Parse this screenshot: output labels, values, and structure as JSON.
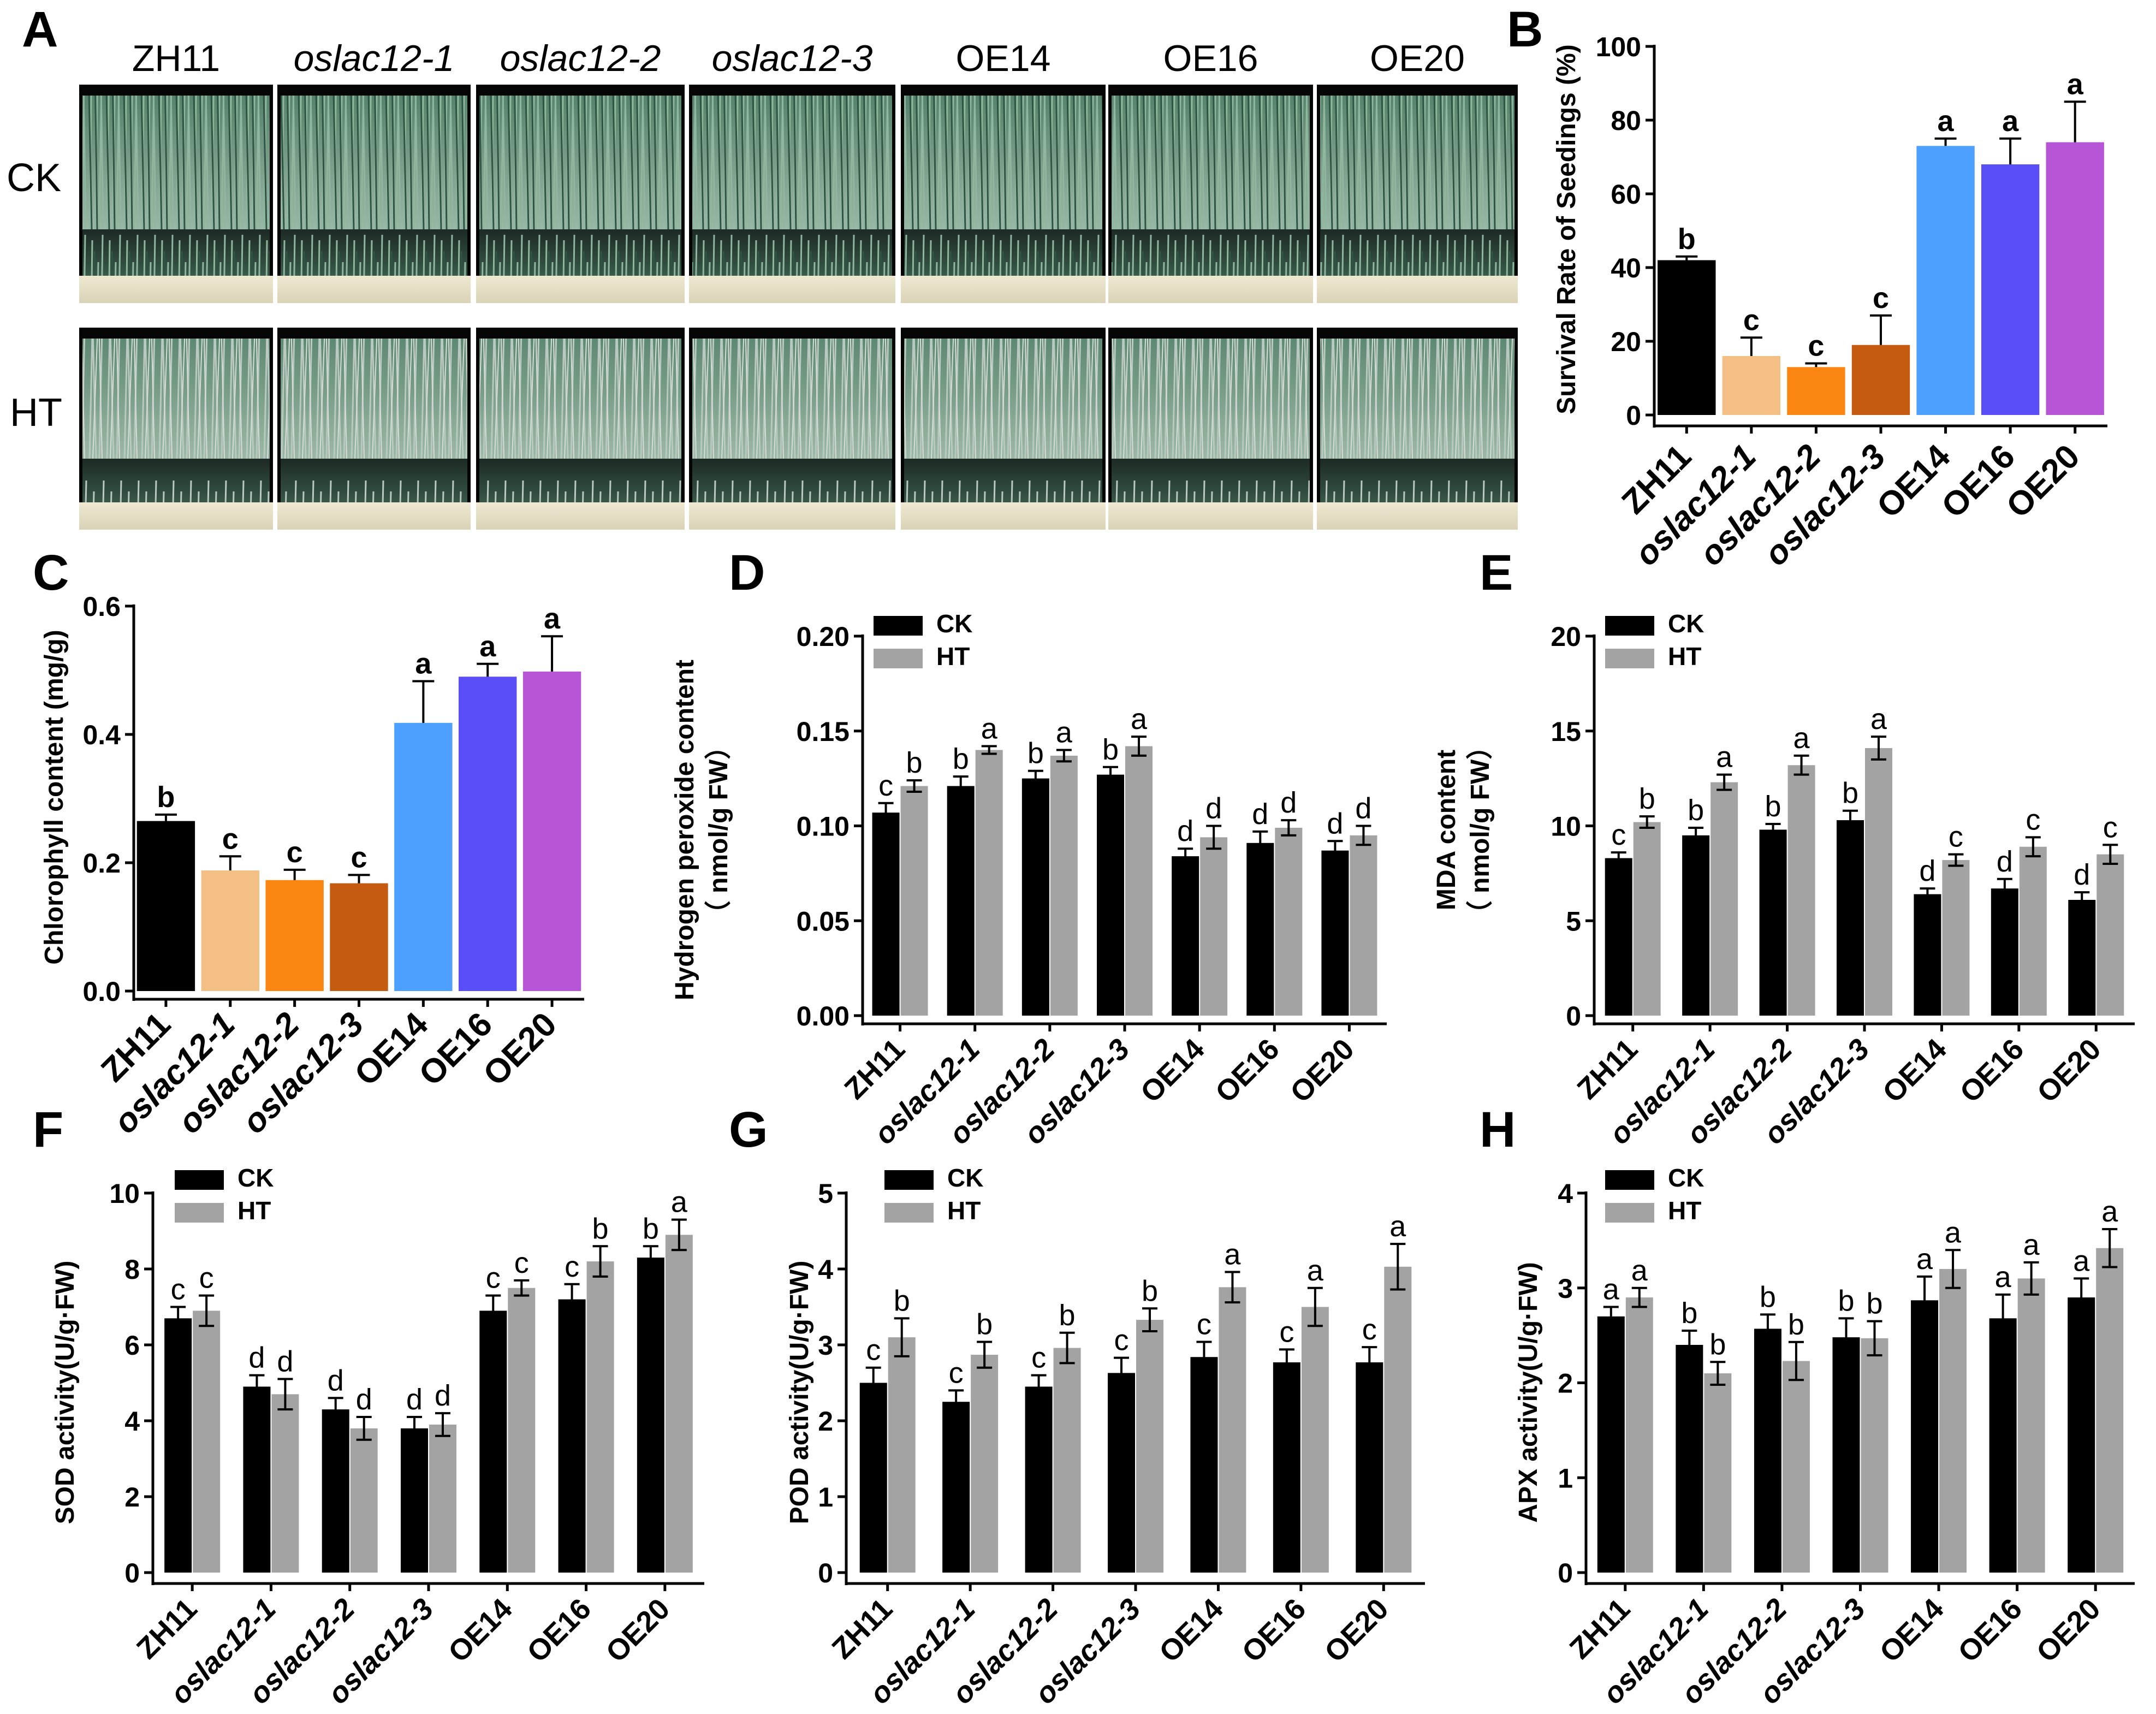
{
  "panel_a": {
    "label": "A",
    "genotypes": [
      "ZH11",
      "oslac12-1",
      "oslac12-2",
      "oslac12-3",
      "OE14",
      "OE16",
      "OE20"
    ],
    "italic": [
      false,
      true,
      true,
      true,
      false,
      false,
      false
    ],
    "conditions": [
      "CK",
      "HT"
    ]
  },
  "colors": {
    "ck": "#000000",
    "ht": "#a3a3a3",
    "survival": [
      "#000000",
      "#f3bf85",
      "#fb8712",
      "#c55a11",
      "#4ea0ff",
      "#5a4ff7",
      "#b655d6"
    ]
  },
  "legend": {
    "ck": "CK",
    "ht": "HT"
  },
  "chart_data": [
    {
      "id": "B",
      "type": "bar",
      "label": "B",
      "categories": [
        "ZH11",
        "oslac12-1",
        "oslac12-2",
        "oslac12-3",
        "OE14",
        "OE16",
        "OE20"
      ],
      "values": [
        42,
        16,
        13,
        19,
        73,
        68,
        74
      ],
      "errors": [
        1,
        5,
        1,
        8,
        2,
        7,
        11
      ],
      "sig": [
        "b",
        "c",
        "c",
        "c",
        "a",
        "a",
        "a"
      ],
      "ylabel": "Survival Rate of Seedings (%)",
      "ylim": [
        0,
        100
      ],
      "yticks": [
        0,
        20,
        40,
        60,
        80,
        100
      ]
    },
    {
      "id": "C",
      "type": "bar",
      "label": "C",
      "categories": [
        "ZH11",
        "oslac12-1",
        "oslac12-2",
        "oslac12-3",
        "OE14",
        "OE16",
        "OE20"
      ],
      "values": [
        0.265,
        0.188,
        0.173,
        0.168,
        0.418,
        0.49,
        0.498
      ],
      "errors": [
        0.01,
        0.022,
        0.016,
        0.013,
        0.065,
        0.02,
        0.055
      ],
      "sig": [
        "b",
        "c",
        "c",
        "c",
        "a",
        "a",
        "a"
      ],
      "ylabel": "Chlorophyll content (mg/g)",
      "ylim": [
        0,
        0.6
      ],
      "yticks": [
        "0.0",
        "0.2",
        "0.4",
        "0.6"
      ]
    },
    {
      "id": "D",
      "type": "bar",
      "label": "D",
      "categories": [
        "ZH11",
        "oslac12-1",
        "oslac12-2",
        "oslac12-3",
        "OE14",
        "OE16",
        "OE20"
      ],
      "series": [
        {
          "name": "CK",
          "values": [
            0.107,
            0.121,
            0.125,
            0.127,
            0.084,
            0.091,
            0.087
          ],
          "errors": [
            0.005,
            0.005,
            0.004,
            0.004,
            0.004,
            0.006,
            0.005
          ],
          "sig": [
            "c",
            "b",
            "b",
            "b",
            "d",
            "d",
            "d"
          ]
        },
        {
          "name": "HT",
          "values": [
            0.121,
            0.14,
            0.137,
            0.142,
            0.094,
            0.099,
            0.095
          ],
          "errors": [
            0.003,
            0.002,
            0.003,
            0.005,
            0.006,
            0.004,
            0.005
          ],
          "sig": [
            "b",
            "a",
            "a",
            "a",
            "d",
            "d",
            "d"
          ]
        }
      ],
      "ylabel": "Hydrogen peroxide content",
      "ylabel2": "（ nmol/g FW）",
      "ylim": [
        0,
        0.2
      ],
      "yticks": [
        "0.00",
        "0.05",
        "0.10",
        "0.15",
        "0.20"
      ]
    },
    {
      "id": "E",
      "type": "bar",
      "label": "E",
      "categories": [
        "ZH11",
        "oslac12-1",
        "oslac12-2",
        "oslac12-3",
        "OE14",
        "OE16",
        "OE20"
      ],
      "series": [
        {
          "name": "CK",
          "values": [
            8.3,
            9.5,
            9.8,
            10.3,
            6.4,
            6.7,
            6.1
          ],
          "errors": [
            0.3,
            0.4,
            0.3,
            0.5,
            0.3,
            0.5,
            0.4
          ],
          "sig": [
            "c",
            "b",
            "b",
            "b",
            "d",
            "d",
            "d"
          ]
        },
        {
          "name": "HT",
          "values": [
            10.2,
            12.3,
            13.2,
            14.1,
            8.2,
            8.9,
            8.5
          ],
          "errors": [
            0.3,
            0.4,
            0.5,
            0.6,
            0.3,
            0.5,
            0.5
          ],
          "sig": [
            "b",
            "a",
            "a",
            "a",
            "c",
            "c",
            "c"
          ]
        }
      ],
      "ylabel": "MDA content",
      "ylabel2": "（ nmol/g FW）",
      "ylim": [
        0,
        20
      ],
      "yticks": [
        "0",
        "5",
        "10",
        "15",
        "20"
      ]
    },
    {
      "id": "F",
      "type": "bar",
      "label": "F",
      "categories": [
        "ZH11",
        "oslac12-1",
        "oslac12-2",
        "oslac12-3",
        "OE14",
        "OE16",
        "OE20"
      ],
      "series": [
        {
          "name": "CK",
          "values": [
            6.7,
            4.9,
            4.3,
            3.8,
            6.9,
            7.2,
            8.3
          ],
          "errors": [
            0.3,
            0.3,
            0.3,
            0.3,
            0.4,
            0.4,
            0.3
          ],
          "sig": [
            "c",
            "d",
            "d",
            "d",
            "c",
            "c",
            "b"
          ]
        },
        {
          "name": "HT",
          "values": [
            6.9,
            4.7,
            3.8,
            3.9,
            7.5,
            8.2,
            8.9
          ],
          "errors": [
            0.4,
            0.4,
            0.3,
            0.3,
            0.2,
            0.4,
            0.4
          ],
          "sig": [
            "c",
            "d",
            "d",
            "d",
            "c",
            "b",
            "a"
          ]
        }
      ],
      "ylabel": "SOD activity(U/g·FW)",
      "ylim": [
        0,
        10
      ],
      "yticks": [
        "0",
        "2",
        "4",
        "6",
        "8",
        "10"
      ]
    },
    {
      "id": "G",
      "type": "bar",
      "label": "G",
      "categories": [
        "ZH11",
        "oslac12-1",
        "oslac12-2",
        "oslac12-3",
        "OE14",
        "OE16",
        "OE20"
      ],
      "series": [
        {
          "name": "CK",
          "values": [
            2.5,
            2.25,
            2.45,
            2.63,
            2.84,
            2.77,
            2.77
          ],
          "errors": [
            0.2,
            0.15,
            0.15,
            0.2,
            0.2,
            0.17,
            0.2
          ],
          "sig": [
            "c",
            "c",
            "c",
            "c",
            "c",
            "c",
            "c"
          ]
        },
        {
          "name": "HT",
          "values": [
            3.1,
            2.87,
            2.96,
            3.33,
            3.76,
            3.5,
            4.03
          ],
          "errors": [
            0.25,
            0.17,
            0.2,
            0.15,
            0.2,
            0.25,
            0.3
          ],
          "sig": [
            "b",
            "b",
            "b",
            "b",
            "a",
            "a",
            "a"
          ]
        }
      ],
      "ylabel": "POD activity(U/g·FW)",
      "ylim": [
        0,
        5
      ],
      "yticks": [
        "0",
        "1",
        "2",
        "3",
        "4",
        "5"
      ]
    },
    {
      "id": "H",
      "type": "bar",
      "label": "H",
      "categories": [
        "ZH11",
        "oslac12-1",
        "oslac12-2",
        "oslac12-3",
        "OE14",
        "OE16",
        "OE20"
      ],
      "series": [
        {
          "name": "CK",
          "values": [
            2.7,
            2.4,
            2.57,
            2.48,
            2.87,
            2.68,
            2.9
          ],
          "errors": [
            0.1,
            0.15,
            0.15,
            0.2,
            0.25,
            0.25,
            0.2
          ],
          "sig": [
            "a",
            "b",
            "b",
            "b",
            "a",
            "a",
            "a"
          ]
        },
        {
          "name": "HT",
          "values": [
            2.9,
            2.1,
            2.23,
            2.47,
            3.2,
            3.1,
            3.42
          ],
          "errors": [
            0.1,
            0.12,
            0.2,
            0.18,
            0.2,
            0.17,
            0.2
          ],
          "sig": [
            "a",
            "b",
            "b",
            "b",
            "a",
            "a",
            "a"
          ]
        }
      ],
      "ylabel": "APX activity(U/g·FW)",
      "ylim": [
        0,
        4
      ],
      "yticks": [
        "0",
        "1",
        "2",
        "3",
        "4"
      ]
    }
  ]
}
